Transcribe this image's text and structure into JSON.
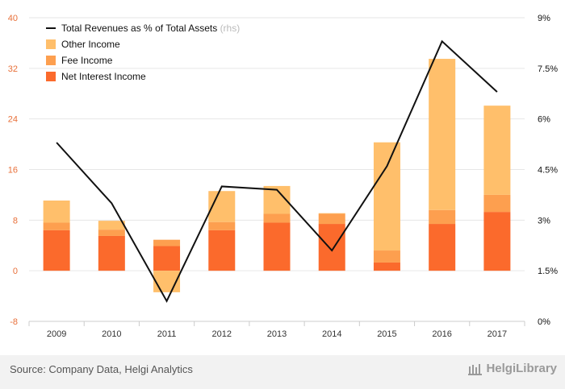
{
  "chart_data": {
    "type": "bar",
    "categories": [
      "2009",
      "2010",
      "2011",
      "2012",
      "2013",
      "2014",
      "2015",
      "2016",
      "2017"
    ],
    "series": [
      {
        "name": "Net Interest Income",
        "type": "bar",
        "axis": "left",
        "color": "#fb6a2c",
        "values": [
          6.4,
          5.5,
          3.9,
          6.4,
          7.6,
          7.4,
          1.3,
          7.4,
          9.3
        ]
      },
      {
        "name": "Fee Income",
        "type": "bar",
        "axis": "left",
        "color": "#fd9f4f",
        "values": [
          1.2,
          1.0,
          1.0,
          1.3,
          1.4,
          1.6,
          1.9,
          2.2,
          2.7
        ]
      },
      {
        "name": "Other Income",
        "type": "bar",
        "axis": "left",
        "color": "#ffbf6b",
        "values": [
          3.5,
          1.4,
          -3.4,
          4.9,
          4.4,
          0.1,
          17.1,
          23.9,
          14.1
        ]
      },
      {
        "name": "Total Revenues as % of Total Assets",
        "name_suffix": "(rhs)",
        "type": "line",
        "axis": "right",
        "color": "#111111",
        "values": [
          5.3,
          3.5,
          0.6,
          4.0,
          3.9,
          2.1,
          4.6,
          8.3,
          6.8
        ]
      }
    ],
    "y_left": {
      "min": -8,
      "max": 40,
      "ticks": [
        "-8",
        "0",
        "8",
        "16",
        "24",
        "32",
        "40"
      ],
      "color": "#e8703a"
    },
    "y_right": {
      "min": 0,
      "max": 9,
      "ticks": [
        "0%",
        "1.5%",
        "3%",
        "4.5%",
        "6%",
        "7.5%",
        "9%"
      ]
    },
    "legend_position": "top-left",
    "grid": true
  },
  "footer": {
    "source": "Source: Company Data, Helgi Analytics",
    "brand": "HelgiLibrary"
  }
}
